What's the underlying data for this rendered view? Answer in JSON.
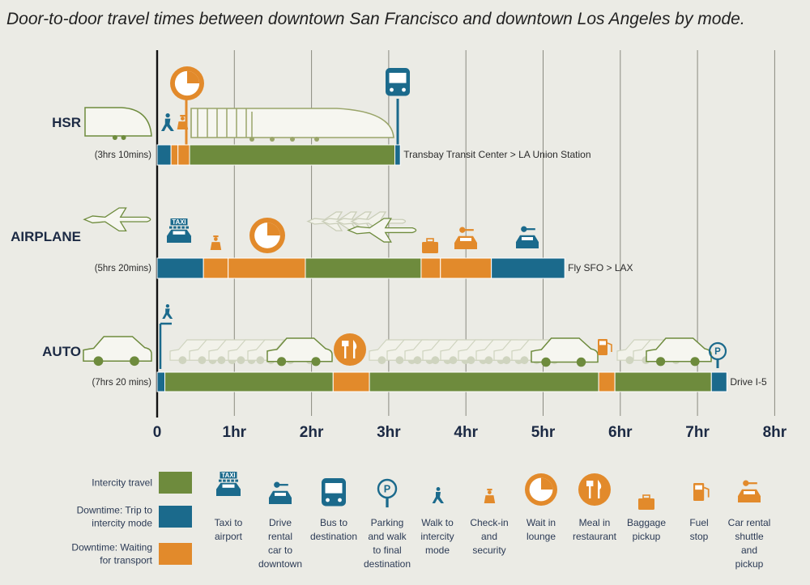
{
  "chart_data": {
    "type": "bar",
    "title": "Door-to-door travel times between downtown San Francisco and downtown Los Angeles by mode.",
    "xlim": [
      0,
      8
    ],
    "x_ticks": [
      "0",
      "1hr",
      "2hr",
      "3hr",
      "4hr",
      "5hr",
      "6hr",
      "7hr",
      "8hr"
    ],
    "grid": true,
    "colors": {
      "intercity": "#6e8b3d",
      "trip": "#1b6a8c",
      "wait": "#e28a2b"
    },
    "modes": [
      {
        "name": "HSR",
        "duration": "(3hrs 10mins)",
        "route": "Transbay Transit Center > LA Union Station",
        "segments": [
          {
            "category": "trip",
            "start": 0.0,
            "end": 0.18
          },
          {
            "category": "wait",
            "start": 0.18,
            "end": 0.27
          },
          {
            "category": "wait",
            "start": 0.27,
            "end": 0.42
          },
          {
            "category": "intercity",
            "start": 0.42,
            "end": 3.08
          },
          {
            "category": "trip",
            "start": 3.08,
            "end": 3.15
          }
        ]
      },
      {
        "name": "AIRPLANE",
        "duration": "(5hrs 20mins)",
        "route": "Fly SFO > LAX",
        "segments": [
          {
            "category": "trip",
            "start": 0.0,
            "end": 0.6
          },
          {
            "category": "wait",
            "start": 0.6,
            "end": 0.92
          },
          {
            "category": "wait",
            "start": 0.92,
            "end": 1.92
          },
          {
            "category": "intercity",
            "start": 1.92,
            "end": 3.42
          },
          {
            "category": "wait",
            "start": 3.42,
            "end": 3.67
          },
          {
            "category": "wait",
            "start": 3.67,
            "end": 4.33
          },
          {
            "category": "trip",
            "start": 4.33,
            "end": 5.28
          }
        ]
      },
      {
        "name": "AUTO",
        "duration": "(7hrs 20 mins)",
        "route": "Drive I-5",
        "segments": [
          {
            "category": "trip",
            "start": 0.0,
            "end": 0.1
          },
          {
            "category": "intercity",
            "start": 0.1,
            "end": 2.28
          },
          {
            "category": "wait",
            "start": 2.28,
            "end": 2.75
          },
          {
            "category": "intercity",
            "start": 2.75,
            "end": 5.72
          },
          {
            "category": "wait",
            "start": 5.72,
            "end": 5.93
          },
          {
            "category": "intercity",
            "start": 5.93,
            "end": 7.18
          },
          {
            "category": "trip",
            "start": 7.18,
            "end": 7.38
          }
        ]
      }
    ],
    "legend": [
      {
        "label": "Intercity travel",
        "category": "intercity"
      },
      {
        "label": "Downtime: Trip to intercity mode",
        "category": "trip"
      },
      {
        "label": "Downtime: Waiting for transport",
        "category": "wait"
      }
    ],
    "icon_legend": [
      {
        "icon": "taxi-icon",
        "category": "trip",
        "caption": "Taxi to airport"
      },
      {
        "icon": "rental-car-icon",
        "category": "trip",
        "caption": "Drive rental car to downtown"
      },
      {
        "icon": "bus-icon",
        "category": "trip",
        "caption": "Bus to destination"
      },
      {
        "icon": "parking-meter-icon",
        "category": "trip",
        "caption": "Parking and walk to final destination"
      },
      {
        "icon": "walking-person-icon",
        "category": "trip",
        "caption": "Walk to intercity mode"
      },
      {
        "icon": "security-guard-icon",
        "category": "wait",
        "caption": "Check-in and security"
      },
      {
        "icon": "clock-icon",
        "category": "wait",
        "caption": "Wait in lounge"
      },
      {
        "icon": "fork-knife-icon",
        "category": "wait",
        "caption": "Meal in restaurant"
      },
      {
        "icon": "suitcase-icon",
        "category": "wait",
        "caption": "Baggage pickup"
      },
      {
        "icon": "fuel-pump-icon",
        "category": "wait",
        "caption": "Fuel stop"
      },
      {
        "icon": "rental-shuttle-icon",
        "category": "wait",
        "caption": "Car rental shuttle and pickup"
      }
    ]
  }
}
